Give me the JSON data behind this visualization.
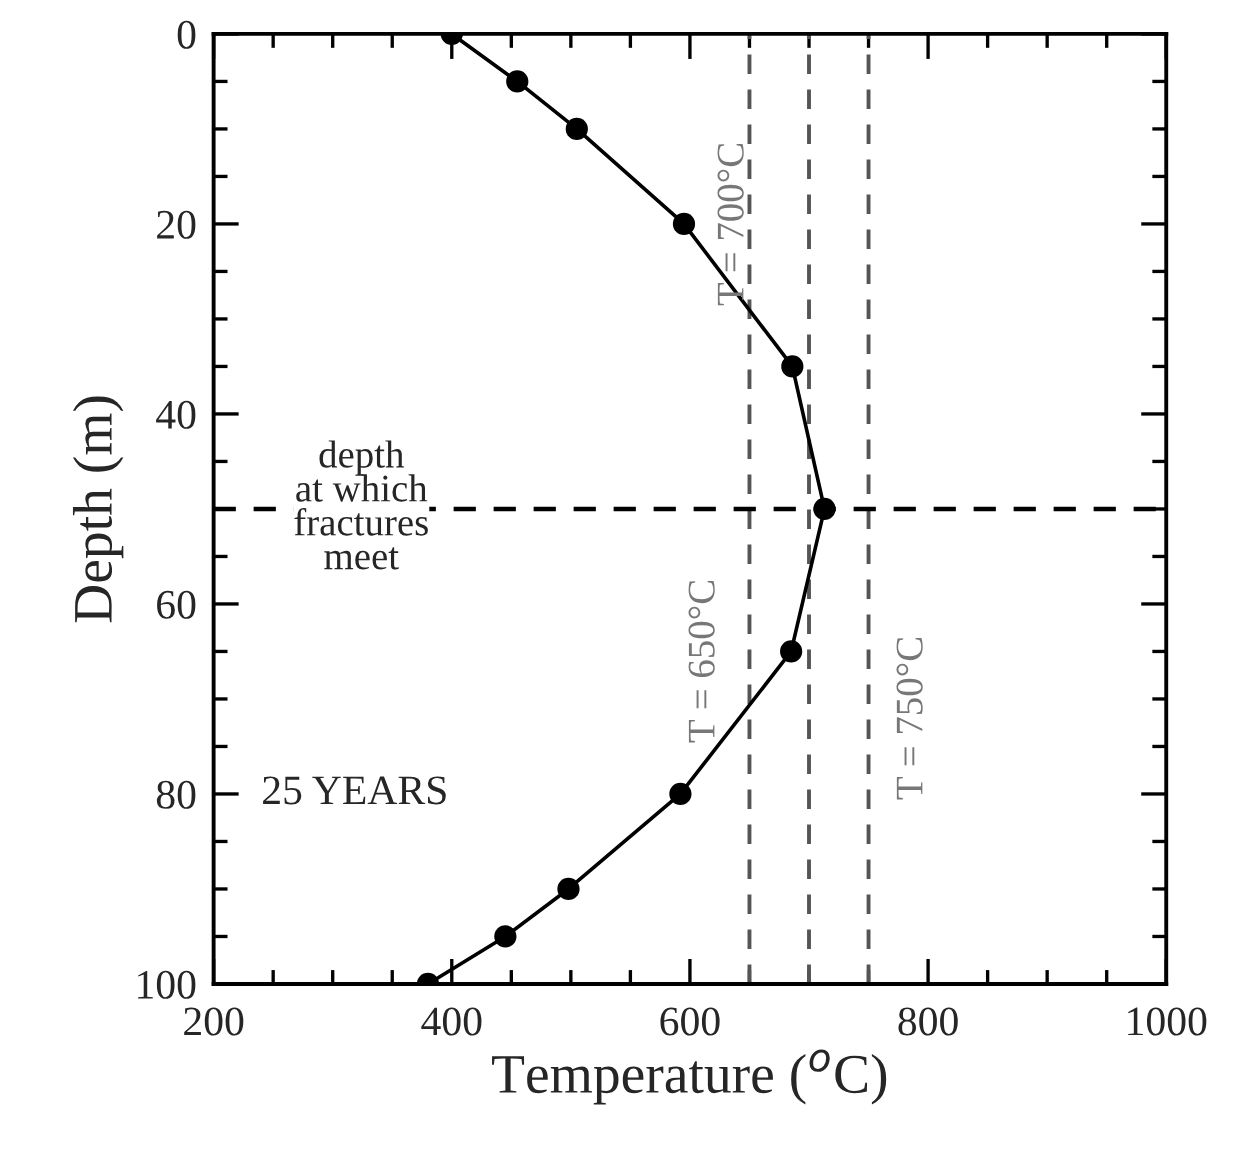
{
  "chart_data": {
    "type": "line",
    "xlabel": "Temperature ($^{o}$C)",
    "ylabel": "Depth (m)",
    "x": [
      400,
      455,
      505,
      595,
      686,
      713,
      685,
      592,
      498,
      445,
      380
    ],
    "series": [
      {
        "color": "#000000",
        "values": [
          0,
          5,
          10,
          20,
          35,
          50,
          65,
          80,
          90,
          95,
          100
        ]
      }
    ],
    "marker": "circle",
    "line_style": "solid",
    "xlim": [
      200,
      1000
    ],
    "xticks": [
      200,
      400,
      600,
      800,
      1000
    ],
    "ylim": [
      100,
      0
    ],
    "yticks": [
      0,
      20,
      40,
      60,
      80,
      100
    ],
    "grid": false,
    "legend": false,
    "ref_lines": [
      {
        "axis": "x",
        "value": 650,
        "label": "T = 650°C",
        "color": "#555555",
        "line_style": "dashed"
      },
      {
        "axis": "x",
        "value": 700,
        "label": "T = 700°C",
        "color": "#555555",
        "line_style": "dashed"
      },
      {
        "axis": "x",
        "value": 750,
        "label": "T = 750°C",
        "color": "#555555",
        "line_style": "dashed"
      },
      {
        "axis": "y",
        "value": 50,
        "label": "depth\nat which\nfractures\nmeet",
        "color": "#000000",
        "line_style": "dashed"
      }
    ],
    "annotations": [
      "25 YEARS"
    ]
  }
}
